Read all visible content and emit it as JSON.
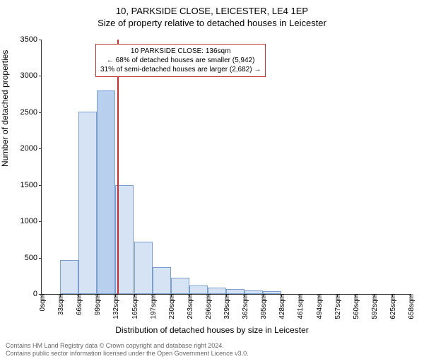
{
  "header": {
    "title": "10, PARKSIDE CLOSE, LEICESTER, LE4 1EP",
    "subtitle": "Size of property relative to detached houses in Leicester"
  },
  "chart": {
    "type": "histogram",
    "ylabel": "Number of detached properties",
    "xlabel": "Distribution of detached houses by size in Leicester",
    "background_color": "#ffffff",
    "bar_fill": "#d6e3f4",
    "bar_border": "#7a9fce",
    "highlight_fill": "#b8d0ee",
    "ref_line_color": "#c03030",
    "ylim": [
      0,
      3500
    ],
    "ytick_step": 500,
    "yticks": [
      0,
      500,
      1000,
      1500,
      2000,
      2500,
      3000,
      3500
    ],
    "xtick_step": 33,
    "xticks": [
      "0sqm",
      "33sqm",
      "66sqm",
      "99sqm",
      "132sqm",
      "165sqm",
      "197sqm",
      "230sqm",
      "263sqm",
      "296sqm",
      "329sqm",
      "362sqm",
      "395sqm",
      "428sqm",
      "461sqm",
      "494sqm",
      "527sqm",
      "560sqm",
      "592sqm",
      "625sqm",
      "658sqm"
    ],
    "values": [
      0,
      470,
      2510,
      2800,
      1500,
      720,
      370,
      220,
      120,
      90,
      70,
      50,
      40,
      0,
      0,
      0,
      0,
      0,
      0,
      0
    ],
    "highlight_index": 3,
    "ref_value_sqm": 136,
    "x_max_sqm": 660
  },
  "info_box": {
    "line1": "10 PARKSIDE CLOSE: 136sqm",
    "line2": "← 68% of detached houses are smaller (5,942)",
    "line3": "31% of semi-detached houses are larger (2,682) →"
  },
  "footer": {
    "line1": "Contains HM Land Registry data © Crown copyright and database right 2024.",
    "line2": "Contains public sector information licensed under the Open Government Licence v3.0."
  }
}
